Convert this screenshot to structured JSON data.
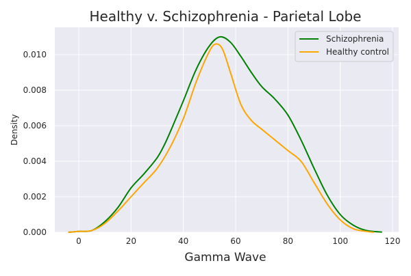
{
  "chart_data": {
    "type": "line",
    "title": "Healthy v. Schizophrenia - Parietal Lobe",
    "xlabel": "Gamma Wave",
    "ylabel": "Density",
    "xlim": [
      -9,
      122
    ],
    "ylim": [
      0,
      0.0115
    ],
    "xticks": [
      "0",
      "20",
      "40",
      "60",
      "80",
      "100",
      "120"
    ],
    "yticks": [
      "0.000",
      "0.002",
      "0.004",
      "0.006",
      "0.008",
      "0.010"
    ],
    "grid": true,
    "legend": "top-right",
    "series": [
      {
        "name": "Schizophrenia",
        "color": "#008000",
        "x": [
          -4,
          0,
          5,
          10,
          15,
          20,
          25,
          30,
          33,
          36,
          40,
          45,
          50,
          54,
          58,
          62,
          66,
          70,
          75,
          80,
          85,
          90,
          95,
          100,
          105,
          110,
          116
        ],
        "y": [
          0,
          5e-05,
          0.0001,
          0.0006,
          0.0014,
          0.0025,
          0.0033,
          0.0042,
          0.005,
          0.006,
          0.0074,
          0.0092,
          0.0105,
          0.011,
          0.0107,
          0.0099,
          0.009,
          0.0082,
          0.0075,
          0.0066,
          0.0052,
          0.0036,
          0.0021,
          0.001,
          0.0004,
          0.0001,
          1e-05
        ]
      },
      {
        "name": "Healthy control",
        "color": "#FFA500",
        "x": [
          -4,
          0,
          5,
          10,
          15,
          20,
          25,
          30,
          35,
          40,
          45,
          50,
          52.5,
          55,
          58,
          62,
          66,
          70,
          75,
          80,
          85,
          90,
          95,
          100,
          105,
          110,
          113
        ],
        "y": [
          0,
          5e-05,
          0.0001,
          0.0005,
          0.0012,
          0.002,
          0.0028,
          0.0036,
          0.0048,
          0.0064,
          0.0085,
          0.0102,
          0.0106,
          0.0103,
          0.009,
          0.0072,
          0.0063,
          0.0058,
          0.0052,
          0.0046,
          0.004,
          0.0028,
          0.0016,
          0.0007,
          0.0002,
          5e-05,
          0
        ]
      }
    ]
  }
}
